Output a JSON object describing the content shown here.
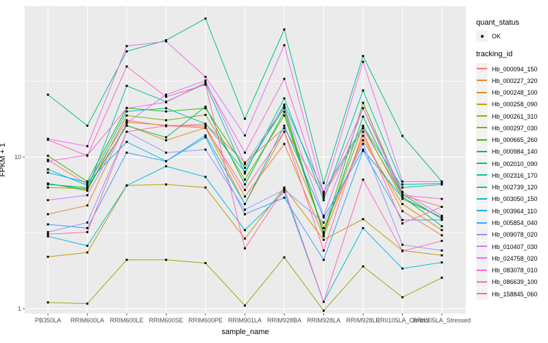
{
  "figure": {
    "y_axis": {
      "label": "FPKM + 1",
      "tick_labels": [
        "10",
        "1"
      ],
      "tick_values": [
        10,
        1
      ]
    },
    "x_axis": {
      "label": "sample_name"
    }
  },
  "legend": {
    "quant_status_title": "quant_status",
    "quant_ok_label": "OK",
    "tracking_title": "tracking_id"
  },
  "colors": {
    "panel_background": "#EBEBEB",
    "gridline": "#FFFFFF",
    "point": "#000000",
    "tick": "#333333",
    "tick_text": "#4D4D4D"
  },
  "chart_data": {
    "type": "line",
    "title": "",
    "xlabel": "sample_name",
    "ylabel": "FPKM + 1",
    "y_scale": "log10",
    "ylim": [
      0.93,
      100
    ],
    "yticks": [
      1,
      10
    ],
    "y_minor_ticks": [
      3.162,
      31.62
    ],
    "grid": true,
    "legend_position": "right",
    "point_shape": "small black point (quant_status = OK)",
    "categories": [
      "PB350LA",
      "RRIM600LA",
      "RRIM600LE",
      "RRIM600SE",
      "RRIM600PE",
      "RRIM901LA",
      "RRIM928BA",
      "RRIM928LA",
      "RRIM928LE",
      "RRII105LA_Control",
      "RRII105LA_Stressed"
    ],
    "series": [
      {
        "name": "Hb_000094_150",
        "color": "#F8766D",
        "values": [
          9.6,
          6.6,
          17.5,
          16.0,
          16.5,
          9.2,
          15.5,
          5.6,
          15.5,
          5.6,
          4.7
        ]
      },
      {
        "name": "Hb_000227_320",
        "color": "#EA8331",
        "values": [
          4.2,
          4.8,
          17.0,
          16.2,
          16.0,
          5.5,
          12.2,
          3.0,
          13.8,
          4.4,
          3.05
        ]
      },
      {
        "name": "Hb_000248_100",
        "color": "#D89000",
        "values": [
          6.3,
          6.2,
          16.2,
          12.9,
          15.6,
          4.9,
          14.7,
          3.4,
          12.9,
          4.9,
          3.3
        ]
      },
      {
        "name": "Hb_000258_090",
        "color": "#C09B00",
        "values": [
          2.2,
          2.35,
          6.5,
          6.6,
          6.3,
          2.9,
          6.3,
          2.85,
          3.9,
          2.42,
          2.25
        ]
      },
      {
        "name": "Hb_000261_310",
        "color": "#A3A500",
        "values": [
          1.1,
          1.08,
          2.1,
          2.1,
          2.0,
          1.05,
          2.18,
          0.97,
          1.9,
          1.19,
          1.6
        ]
      },
      {
        "name": "Hb_000297_030",
        "color": "#7CAE00",
        "values": [
          6.7,
          6.0,
          18.8,
          17.5,
          19.0,
          7.1,
          18.8,
          3.2,
          16.1,
          5.3,
          4.0
        ]
      },
      {
        "name": "Hb_000665_260",
        "color": "#39B600",
        "values": [
          10.2,
          6.9,
          21.1,
          20.0,
          21.0,
          8.5,
          21.0,
          3.15,
          22.8,
          5.7,
          3.9
        ]
      },
      {
        "name": "Hb_000984_140",
        "color": "#00BB4E",
        "values": [
          6.6,
          6.3,
          16.1,
          13.5,
          21.5,
          6.6,
          19.9,
          3.1,
          18.5,
          5.5,
          3.5
        ]
      },
      {
        "name": "Hb_002010_090",
        "color": "#00BF7D",
        "values": [
          25.8,
          16.1,
          49.8,
          59.0,
          82.0,
          17.9,
          69.5,
          6.74,
          46.4,
          13.8,
          6.9
        ]
      },
      {
        "name": "Hb_002316_170",
        "color": "#00C1A3",
        "values": [
          6.7,
          6.1,
          29.5,
          23.2,
          30.5,
          7.8,
          24.4,
          5.2,
          27.5,
          6.6,
          6.7
        ]
      },
      {
        "name": "Hb_002739_120",
        "color": "#00BFC4",
        "values": [
          8.3,
          6.5,
          20.0,
          21.0,
          16.6,
          8.0,
          22.2,
          5.9,
          16.0,
          6.3,
          6.6
        ]
      },
      {
        "name": "Hb_003050_150",
        "color": "#00BAE0",
        "values": [
          3.0,
          2.6,
          6.5,
          8.7,
          7.4,
          3.3,
          5.9,
          1.11,
          3.4,
          1.84,
          2.02
        ]
      },
      {
        "name": "Hb_003964_110",
        "color": "#00B0F6",
        "values": [
          7.9,
          6.8,
          12.6,
          9.4,
          13.9,
          4.9,
          16.1,
          4.0,
          11.2,
          5.4,
          4.0
        ]
      },
      {
        "name": "Hb_005854_040",
        "color": "#35A2FF",
        "values": [
          3.6,
          3.4,
          10.7,
          9.4,
          13.5,
          4.2,
          5.4,
          2.1,
          11.0,
          3.85,
          3.85
        ]
      },
      {
        "name": "Hb_009078_020",
        "color": "#9590FF",
        "values": [
          3.2,
          3.7,
          14.7,
          10.7,
          11.2,
          4.5,
          6.1,
          3.7,
          12.2,
          2.64,
          2.42
        ]
      },
      {
        "name": "Hb_010407_030",
        "color": "#C77CFF",
        "values": [
          5.2,
          5.6,
          16.8,
          25.8,
          32.0,
          9.0,
          21.5,
          4.1,
          21.0,
          5.9,
          4.1
        ]
      },
      {
        "name": "Hb_024758_020",
        "color": "#E76BF3",
        "values": [
          13.2,
          11.8,
          54.0,
          58.0,
          33.8,
          13.9,
          54.7,
          5.8,
          42.5,
          6.9,
          6.9
        ]
      },
      {
        "name": "Hb_083078_010",
        "color": "#FA62DB",
        "values": [
          9.4,
          10.3,
          21.0,
          23.0,
          31.0,
          10.7,
          32.8,
          5.4,
          21.0,
          5.6,
          5.3
        ]
      },
      {
        "name": "Hb_086639_100",
        "color": "#FF62BC",
        "values": [
          13.0,
          10.2,
          39.6,
          25.0,
          30.0,
          2.5,
          6.2,
          1.11,
          7.1,
          2.4,
          2.8
        ]
      },
      {
        "name": "Hb_158845_060",
        "color": "#FF6A98",
        "values": [
          3.1,
          3.2,
          14.7,
          16.1,
          15.6,
          6.07,
          14.7,
          2.42,
          14.7,
          3.65,
          4.7
        ]
      }
    ]
  }
}
